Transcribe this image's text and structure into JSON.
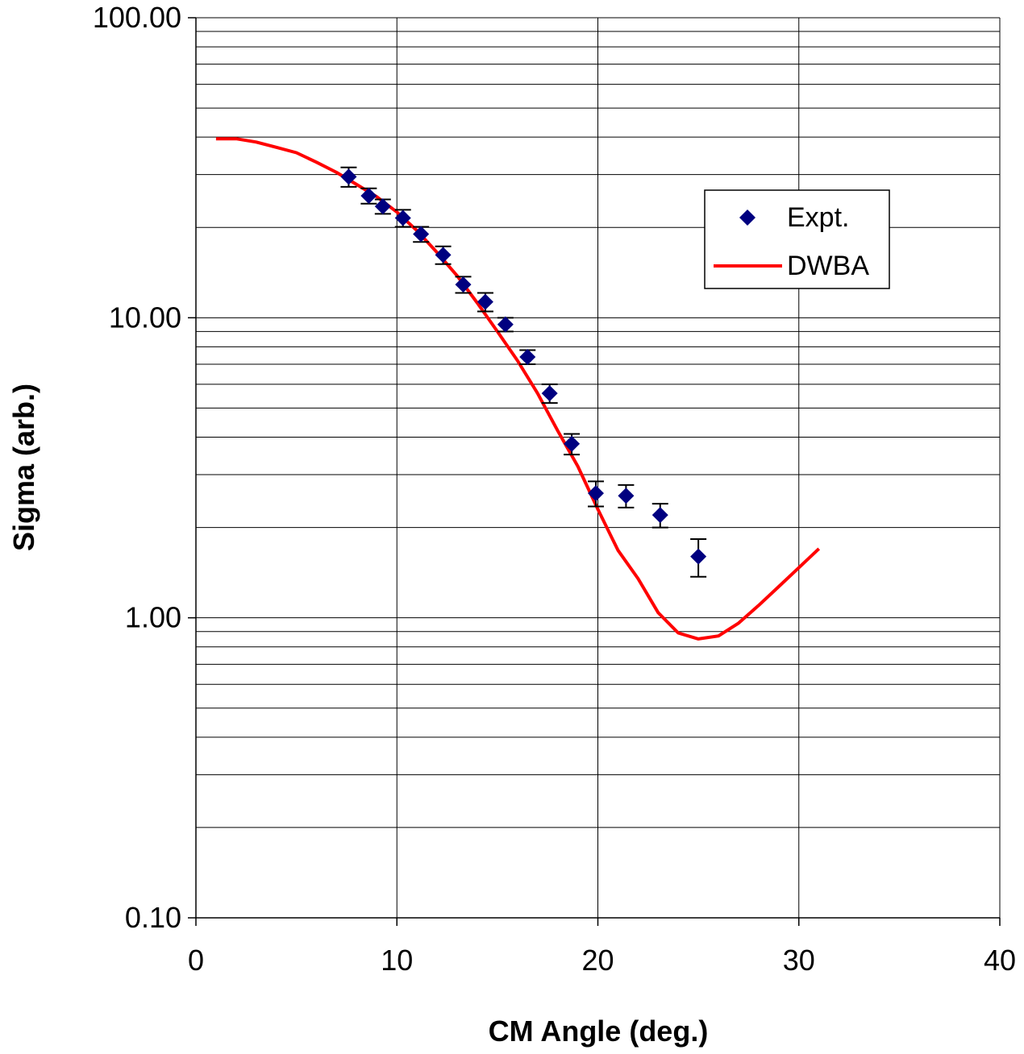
{
  "chart_data": {
    "type": "scatter",
    "xlabel": "CM Angle (deg.)",
    "ylabel": "Sigma (arb.)",
    "xlim": [
      0,
      40
    ],
    "ylim": [
      0.1,
      100
    ],
    "yscale": "log",
    "x_ticks": [
      "0",
      "10",
      "20",
      "30",
      "40"
    ],
    "y_ticks": [
      "0.10",
      "1.00",
      "10.00",
      "100.00"
    ],
    "grid": "horizontal major and minor, vertical major",
    "legend_position": "upper-right",
    "legend": [
      "Expt.",
      "DWBA"
    ],
    "series": [
      {
        "name": "Expt.",
        "kind": "scatter-with-errorbars",
        "color": "#000080",
        "marker": "diamond",
        "x": [
          7.6,
          8.6,
          9.3,
          10.3,
          11.2,
          12.3,
          13.3,
          14.4,
          15.4,
          16.5,
          17.6,
          18.7,
          19.9,
          21.4,
          23.1,
          25.0
        ],
        "y": [
          29.5,
          25.5,
          23.5,
          21.5,
          19.0,
          16.2,
          12.9,
          11.3,
          9.5,
          7.4,
          5.6,
          3.8,
          2.6,
          2.55,
          2.2,
          1.6
        ],
        "err": [
          2.2,
          1.5,
          1.3,
          1.4,
          1.1,
          1.1,
          0.8,
          0.8,
          0.5,
          0.4,
          0.4,
          0.3,
          0.25,
          0.22,
          0.2,
          0.23
        ]
      },
      {
        "name": "DWBA",
        "kind": "line",
        "color": "#ff0000",
        "x": [
          1,
          2,
          3,
          4,
          5,
          6,
          7,
          8,
          9,
          10,
          11,
          12,
          13,
          14,
          15,
          16,
          17,
          18,
          19,
          20,
          21,
          22,
          23,
          24,
          25,
          26,
          27,
          28,
          29,
          30,
          31
        ],
        "y": [
          39.5,
          39.5,
          38.5,
          37.0,
          35.5,
          33.0,
          30.5,
          27.8,
          25.3,
          22.5,
          19.5,
          16.5,
          13.8,
          11.2,
          9.0,
          7.2,
          5.6,
          4.2,
          3.2,
          2.3,
          1.68,
          1.35,
          1.04,
          0.89,
          0.85,
          0.87,
          0.96,
          1.1,
          1.27,
          1.47,
          1.7
        ]
      }
    ]
  }
}
